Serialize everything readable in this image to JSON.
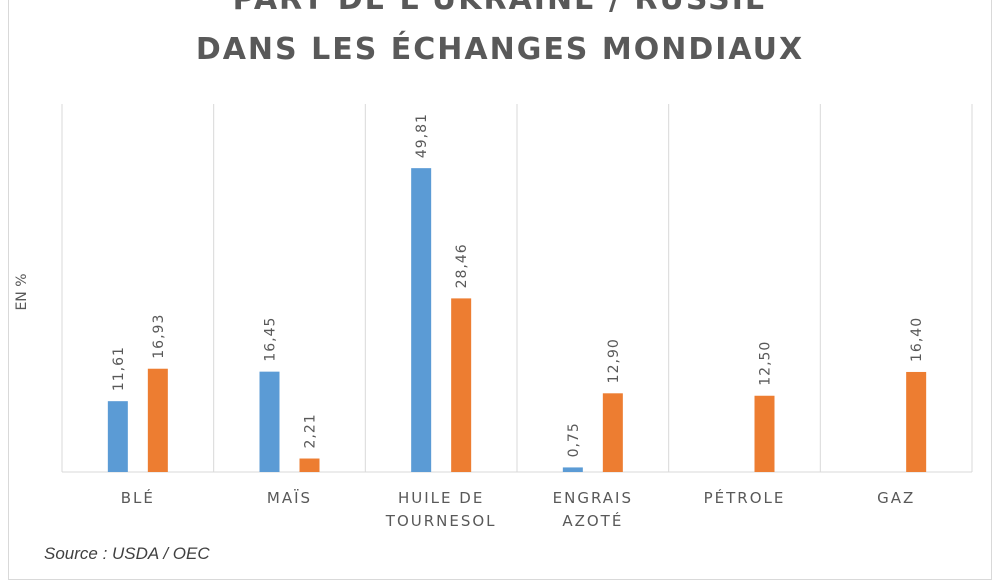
{
  "chart_data": {
    "type": "bar",
    "title_lines": [
      "PART DE L'UKRAINE / RUSSIE",
      "DANS LES ÉCHANGES MONDIAUX"
    ],
    "ylabel": "EN %",
    "categories": [
      [
        "BLÉ"
      ],
      [
        "MAÏS"
      ],
      [
        "HUILE DE",
        "TOURNESOL"
      ],
      [
        "ENGRAIS",
        "AZOTÉ"
      ],
      [
        "PÉTROLE"
      ],
      [
        "GAZ"
      ]
    ],
    "series": [
      {
        "color": "#5b9bd5",
        "values": [
          11.61,
          16.45,
          49.81,
          0.75,
          null,
          null
        ],
        "labels": [
          "11,61",
          "16,45",
          "49,81",
          "0,75",
          "",
          ""
        ]
      },
      {
        "color": "#ed7d31",
        "values": [
          16.93,
          2.21,
          28.46,
          12.9,
          12.5,
          16.4
        ],
        "labels": [
          "16,93",
          "2,21",
          "28,46",
          "12,90",
          "12,50",
          "16,40"
        ]
      }
    ],
    "ylim": [
      0,
      50
    ],
    "grid": "vertical category separators",
    "legend": "none",
    "source": "Source : USDA / OEC"
  }
}
